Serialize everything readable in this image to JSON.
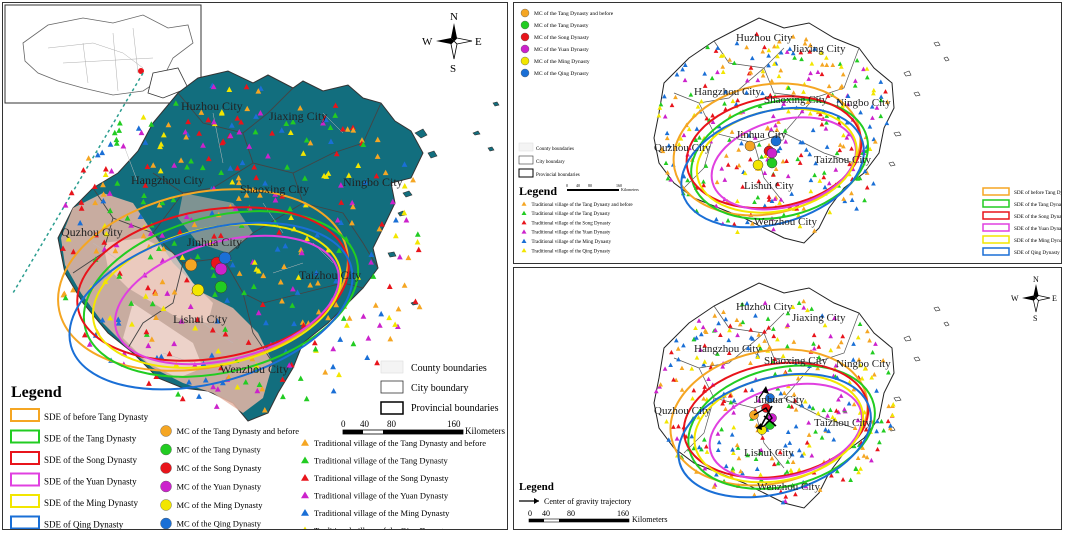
{
  "compass": {
    "n": "N",
    "s": "S",
    "e": "E",
    "w": "W"
  },
  "cities": {
    "huzhou": "Huzhou City",
    "jiaxing": "Jiaxing City",
    "hangzhou": "Hangzhou City",
    "shaoxing": "Shaoxing City",
    "ningbo": "Ningbo City",
    "jinhua": "Jinhua City",
    "quzhou": "Quzhou City",
    "taizhou": "Taizhou City",
    "lishui": "Lishui City",
    "wenzhou": "Wenzhou City"
  },
  "legend_title": "Legend",
  "boundaries": {
    "county": "County boundaries",
    "city": "City boundary",
    "provincial": "Provincial boundaries"
  },
  "sde": [
    {
      "label": "SDE of before Tang Dynasty",
      "color": "#f5a623"
    },
    {
      "label": "SDE of the Tang Dynasty",
      "color": "#22cc22"
    },
    {
      "label": "SDE of the Song Dynasty",
      "color": "#e8141b"
    },
    {
      "label": "SDE of the Yuan Dynasty",
      "color": "#e040e0"
    },
    {
      "label": "SDE of the Ming Dynasty",
      "color": "#f2e600"
    },
    {
      "label": "SDE of Qing Dynasty",
      "color": "#1a6fd6"
    }
  ],
  "sde_p2": [
    {
      "label": "SDE of before Tang Dynasty",
      "color": "#f5a623"
    },
    {
      "label": "SDE of the Tang Dynasty",
      "color": "#22cc22"
    },
    {
      "label": "SDE of the Song Dynasty",
      "color": "#e8141b"
    },
    {
      "label": "SDE of the Yuan Dynasty",
      "color": "#e040e0"
    },
    {
      "label": "SDE of the Ming Dynasty",
      "color": "#f2e600"
    },
    {
      "label": "SDE of Qing Dynasty",
      "color": "#1a6fd6"
    }
  ],
  "mc": [
    {
      "label": "MC of the Tang Dynasty and before",
      "color": "#f5a623"
    },
    {
      "label": "MC of the Tang Dynasty",
      "color": "#22cc22"
    },
    {
      "label": "MC of the Song Dynasty",
      "color": "#e8141b"
    },
    {
      "label": "MC of the Yuan Dynasty",
      "color": "#cc22cc"
    },
    {
      "label": "MC of the Ming Dynasty",
      "color": "#f2e600"
    },
    {
      "label": "MC of the Qing Dynasty",
      "color": "#1a6fd6"
    }
  ],
  "villages": [
    {
      "label": "Traditional village of the Tang Dynasty and before",
      "color": "#f5a623"
    },
    {
      "label": "Traditional village of the Tang Dynasty",
      "color": "#22cc22"
    },
    {
      "label": "Traditional village of the Song Dynasty",
      "color": "#e8141b"
    },
    {
      "label": "Traditional village of the Yuan Dynasty",
      "color": "#cc22cc"
    },
    {
      "label": "Traditional village of the Ming Dynasty",
      "color": "#1a6fd6"
    },
    {
      "label": "Traditional village of the Qing Dynasty",
      "color": "#f2e600"
    }
  ],
  "scale": {
    "ticks": [
      "0",
      "40",
      "80",
      "160"
    ],
    "unit": "Kilometers"
  },
  "trajectory_label": "Center of gravity trajectory"
}
